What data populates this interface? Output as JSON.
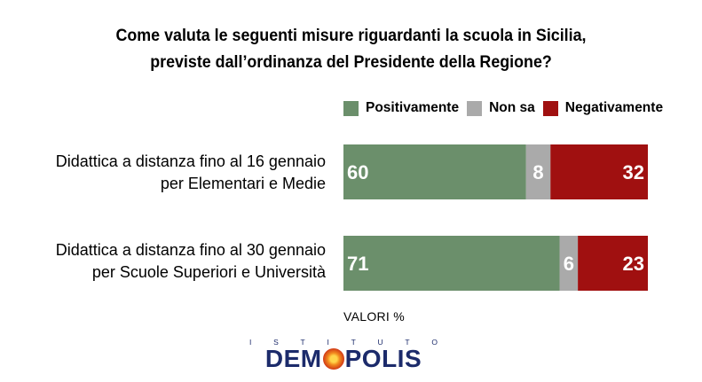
{
  "title": {
    "line1": "Come valuta le seguenti misure riguardanti la scuola in Sicilia,",
    "line2": "previste dall’ordinanza del Presidente della Regione?"
  },
  "legend": [
    {
      "label": "Positivamente",
      "color": "#6b8f6b"
    },
    {
      "label": "Non sa",
      "color": "#aaaaaa"
    },
    {
      "label": "Negativamente",
      "color": "#a01010"
    }
  ],
  "chart_data": {
    "type": "bar",
    "orientation": "horizontal",
    "stacked": true,
    "categories": [
      [
        "Didattica a distanza fino al 16 gennaio",
        "per Elementari e Medie"
      ],
      [
        "Didattica a distanza fino al 30 gennaio",
        "per Scuole Superiori e Università"
      ]
    ],
    "series": [
      {
        "name": "Positivamente",
        "values": [
          60,
          71
        ],
        "color": "#6b8f6b"
      },
      {
        "name": "Non sa",
        "values": [
          8,
          6
        ],
        "color": "#aaaaaa"
      },
      {
        "name": "Negativamente",
        "values": [
          32,
          23
        ],
        "color": "#a01010"
      }
    ],
    "xlim": [
      0,
      100
    ],
    "legend_position": "top-right",
    "grid": false,
    "unit_note": "VALORI %"
  },
  "logo": {
    "top_text": [
      "I",
      "S",
      "T",
      "I",
      "T",
      "U",
      "T",
      "O"
    ],
    "main_left": "DEM",
    "main_right": "POLIS"
  }
}
